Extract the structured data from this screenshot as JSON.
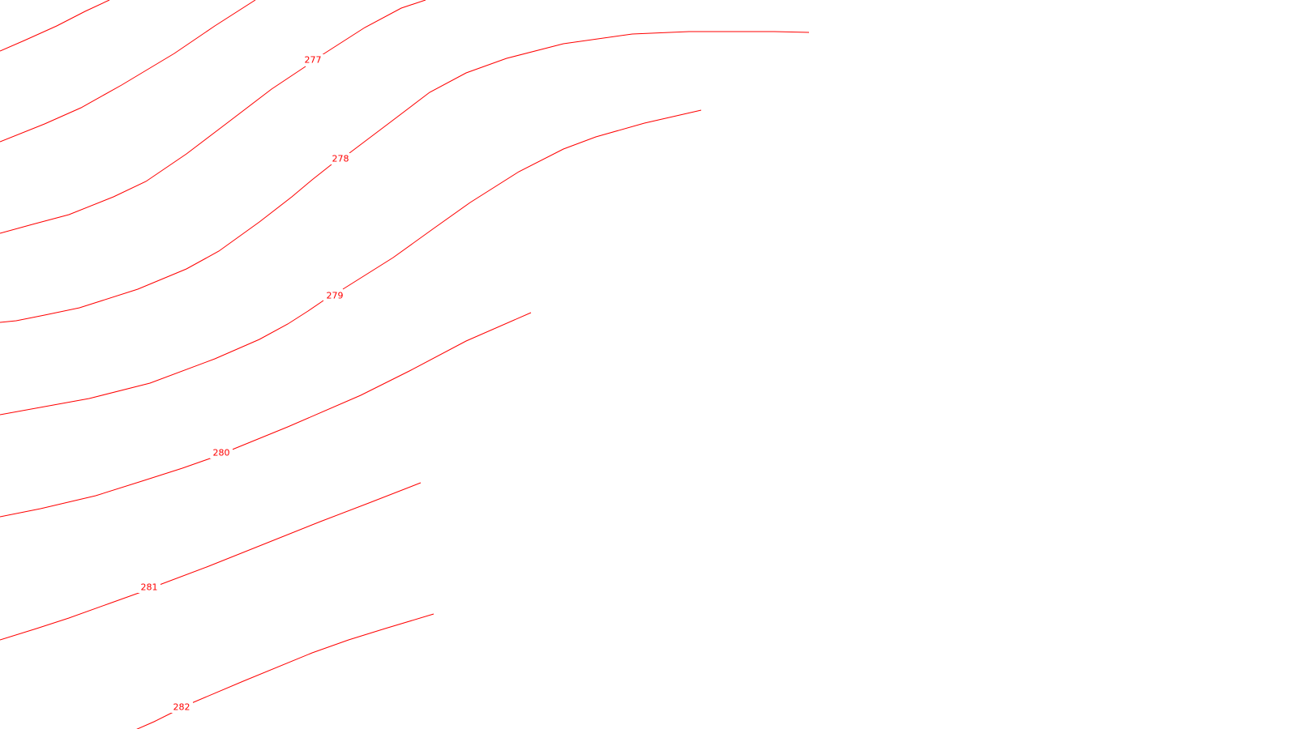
{
  "map": {
    "colors": {
      "contour": "#ff0000",
      "background": "#ffffff"
    },
    "contours": [
      {
        "id": "c1",
        "label": ""
      },
      {
        "id": "c2",
        "label": ""
      },
      {
        "id": "c277",
        "label": "277"
      },
      {
        "id": "c278",
        "label": "278"
      },
      {
        "id": "c279",
        "label": "279"
      },
      {
        "id": "c280",
        "label": "280"
      },
      {
        "id": "c281",
        "label": "281"
      },
      {
        "id": "c282",
        "label": "282"
      }
    ]
  }
}
